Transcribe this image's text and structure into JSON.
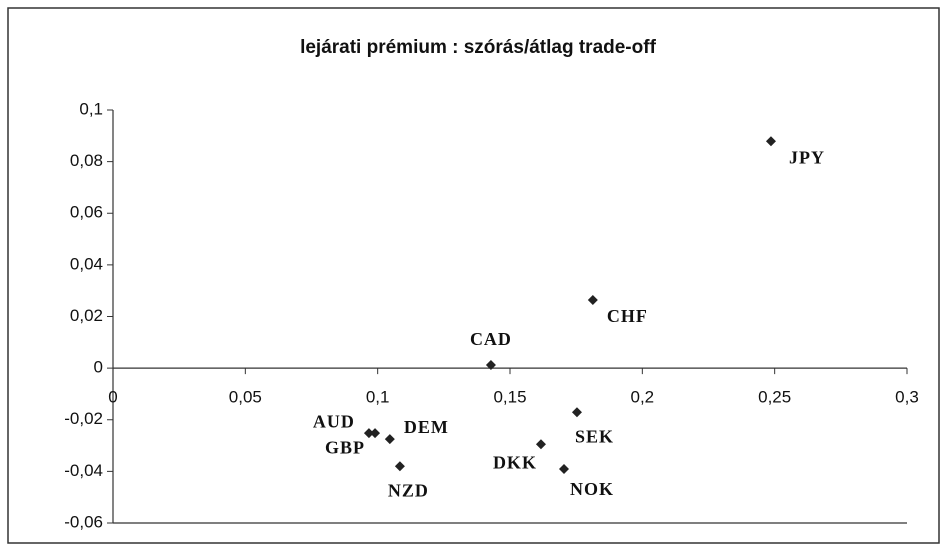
{
  "chart_data": {
    "type": "scatter",
    "title": "lejárati prémium : szórás/átlag trade-off",
    "labels": [
      "JPY",
      "CHF",
      "CAD",
      "SEK",
      "DKK",
      "NOK",
      "AUD",
      "GBP",
      "DEM",
      "NZD"
    ],
    "x": [
      0.2486,
      0.1813,
      0.1428,
      0.1753,
      0.1617,
      0.1704,
      0.0967,
      0.099,
      0.1046,
      0.1084
    ],
    "y": [
      0.0879,
      0.0264,
      0.0012,
      -0.0171,
      -0.0295,
      -0.0391,
      -0.0252,
      -0.0252,
      -0.0275,
      -0.038
    ],
    "color": "#222222",
    "xlim": [
      0,
      0.3
    ],
    "ylim": [
      -0.06,
      0.1
    ],
    "xticks": [
      0,
      {
        "value": 0.05,
        "label": "0,05"
      },
      {
        "value": 0.1,
        "label": "0,1"
      },
      {
        "value": 0.15,
        "label": "0,15"
      },
      {
        "value": 0.2,
        "label": "0,2"
      },
      {
        "value": 0.25,
        "label": "0,25"
      },
      {
        "value": 0.3,
        "label": "0,3"
      }
    ],
    "yticks": [
      {
        "value": 0.1,
        "label": "0,1"
      },
      {
        "value": 0.08,
        "label": "0,08"
      },
      {
        "value": 0.06,
        "label": "0,06"
      },
      {
        "value": 0.04,
        "label": "0,04"
      },
      {
        "value": 0.02,
        "label": "0,02"
      },
      0,
      {
        "value": -0.02,
        "label": "-0,02"
      },
      {
        "value": -0.04,
        "label": "-0,04"
      },
      {
        "value": -0.06,
        "label": "-0,06"
      }
    ]
  }
}
